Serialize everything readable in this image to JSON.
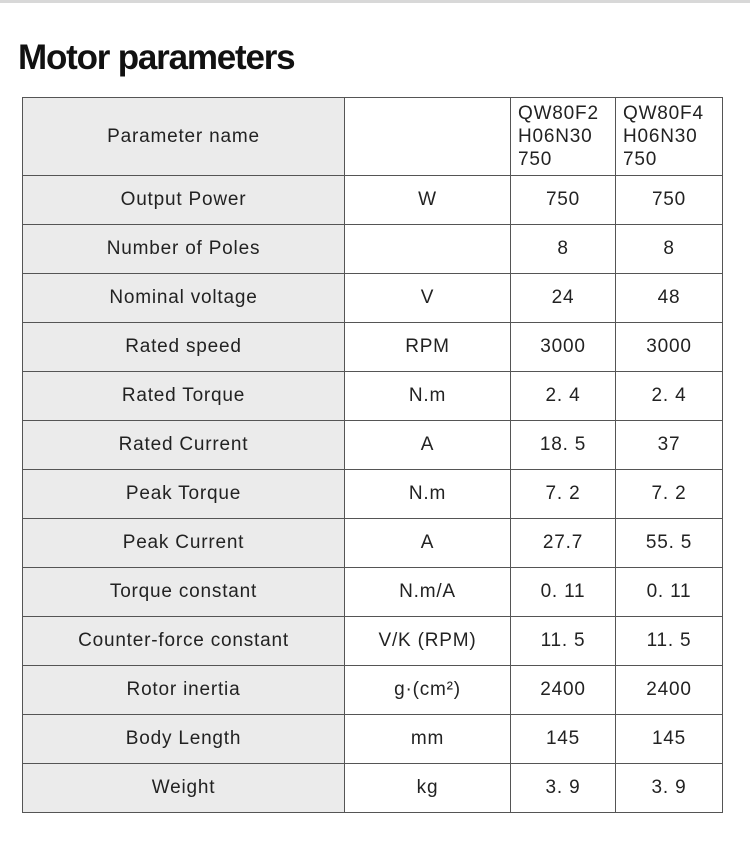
{
  "header": {
    "title": "Motor parameters"
  },
  "table": {
    "columns": {
      "name": "Parameter name",
      "models": [
        [
          "QW80F2",
          "H06N30",
          "750"
        ],
        [
          "QW80F4",
          "H06N30",
          "750"
        ]
      ]
    },
    "rows": [
      {
        "name": "Output Power",
        "unit": "W",
        "values": [
          "750",
          "750"
        ]
      },
      {
        "name": "Number of Poles",
        "values": [
          "8",
          "8"
        ]
      },
      {
        "name": "Nominal voltage",
        "unit": "V",
        "values": [
          "24",
          "48"
        ]
      },
      {
        "name": "Rated speed",
        "unit": "RPM",
        "values": [
          "3000",
          "3000"
        ]
      },
      {
        "name": "Rated Torque",
        "unit": "N.m",
        "values": [
          "2. 4",
          "2. 4"
        ]
      },
      {
        "name": "Rated Current",
        "unit": "A",
        "values": [
          "18. 5",
          "37"
        ]
      },
      {
        "name": "Peak Torque",
        "unit": "N.m",
        "values": [
          "7. 2",
          "7. 2"
        ]
      },
      {
        "name": "Peak Current",
        "unit": "A",
        "values": [
          "27.7",
          "55. 5"
        ]
      },
      {
        "name": "Torque constant",
        "unit": "N.m/A",
        "values": [
          "0. 11",
          "0. 11"
        ]
      },
      {
        "name": "Counter-force constant",
        "unit": "V/K (RPM)",
        "values": [
          "11. 5",
          "11. 5"
        ]
      },
      {
        "name": "Rotor inertia",
        "unit": "g·(cm²)",
        "values": [
          "2400",
          "2400"
        ]
      },
      {
        "name": "Body Length",
        "unit": "mm",
        "values": [
          "145",
          "145"
        ]
      },
      {
        "name": "Weight",
        "unit": "kg",
        "values": [
          "3. 9",
          "3. 9"
        ]
      }
    ]
  }
}
